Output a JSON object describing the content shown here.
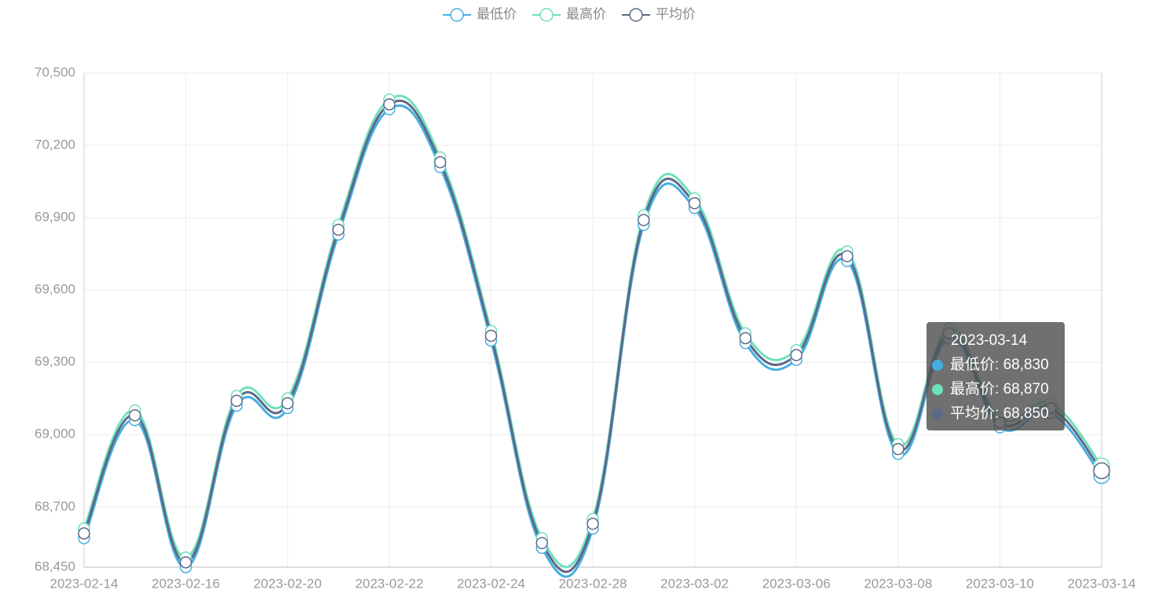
{
  "chart_data": {
    "type": "line",
    "categories": [
      "2023-02-14",
      null,
      "2023-02-16",
      null,
      "2023-02-20",
      null,
      "2023-02-22",
      null,
      "2023-02-24",
      null,
      "2023-02-28",
      null,
      "2023-03-02",
      null,
      "2023-03-06",
      null,
      "2023-03-08",
      null,
      "2023-03-10",
      null,
      "2023-03-14"
    ],
    "series": [
      {
        "name": "最低价",
        "color": "#45aee0",
        "values": [
          68570,
          69060,
          68450,
          69120,
          69110,
          69830,
          70350,
          70110,
          69390,
          68530,
          68610,
          69870,
          69940,
          69380,
          69310,
          69720,
          68920,
          69400,
          69030,
          69090,
          68830
        ]
      },
      {
        "name": "最高价",
        "color": "#6fe0bc",
        "values": [
          68610,
          69100,
          68490,
          69160,
          69150,
          69870,
          70390,
          70150,
          69430,
          68570,
          68650,
          69910,
          69980,
          69420,
          69350,
          69760,
          68960,
          69440,
          69070,
          69130,
          68870
        ]
      },
      {
        "name": "平均价",
        "color": "#5e6888",
        "values": [
          68590,
          69080,
          68470,
          69140,
          69130,
          69850,
          70370,
          70130,
          69410,
          68550,
          68630,
          69890,
          69960,
          69400,
          69330,
          69740,
          68940,
          69420,
          69050,
          69110,
          68850
        ]
      }
    ],
    "ylim": [
      68450,
      70500
    ],
    "yticks": [
      {
        "value": 68450,
        "label": "68,450"
      },
      {
        "value": 68700,
        "label": "68,700"
      },
      {
        "value": 69000,
        "label": "69,000"
      },
      {
        "value": 69300,
        "label": "69,300"
      },
      {
        "value": 69600,
        "label": "69,600"
      },
      {
        "value": 69900,
        "label": "69,900"
      },
      {
        "value": 70200,
        "label": "70,200"
      },
      {
        "value": 70500,
        "label": "70,500"
      }
    ],
    "grid": true,
    "smooth": true,
    "legend": "top",
    "tooltip": {
      "value_labels": [
        "68,830",
        "68,870",
        "68,850"
      ]
    }
  }
}
